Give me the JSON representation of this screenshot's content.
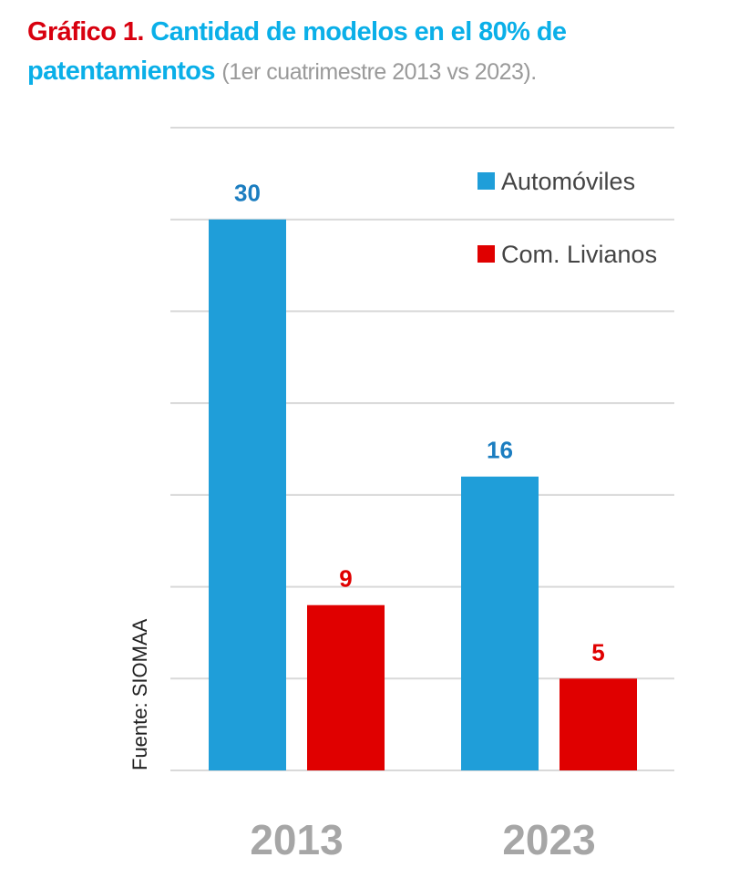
{
  "title": {
    "prefix": "Gráfico 1.",
    "main": "Cantidad de modelos en el 80% de patentamientos",
    "subtitle": "(1er cuatrimestre 2013 vs 2023)."
  },
  "colors": {
    "automoviles": "#1F9ED9",
    "livianos": "#E00000",
    "title_red": "#D8000F",
    "title_cyan": "#0AAFE8",
    "grid": "#d9d9d9",
    "axis_labels": "#a6a6a6"
  },
  "chart_data": {
    "type": "bar",
    "categories": [
      "2013",
      "2023"
    ],
    "series": [
      {
        "name": "Automóviles",
        "values": [
          30,
          16
        ]
      },
      {
        "name": "Com. Livianos",
        "values": [
          9,
          5
        ]
      }
    ],
    "ylim": [
      0,
      35
    ],
    "grid": true,
    "grid_step": 5,
    "legend": "top-right",
    "source": "Fuente: SIOMAA"
  }
}
